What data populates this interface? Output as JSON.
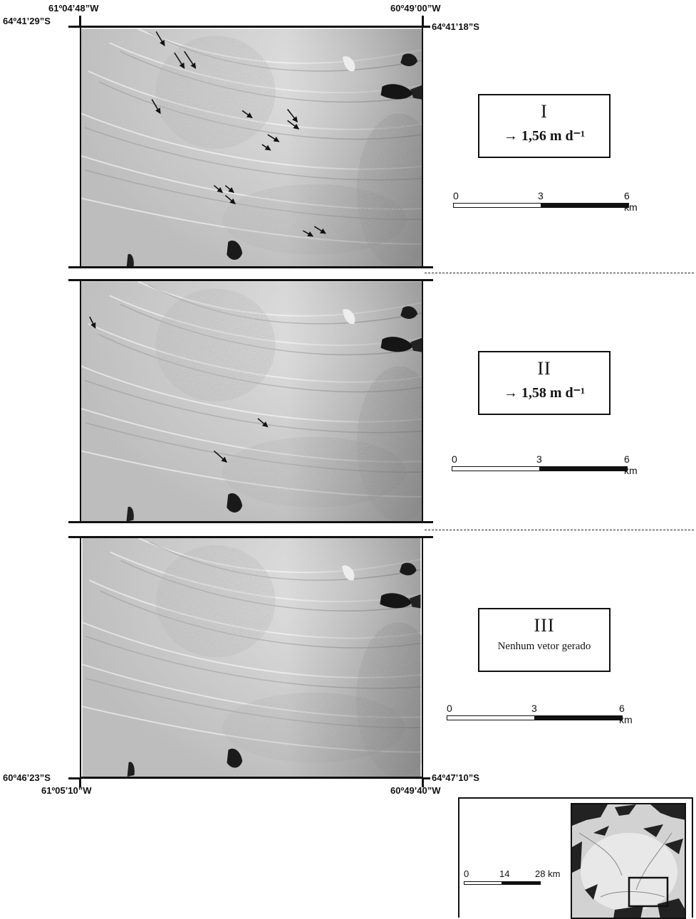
{
  "coordinates": {
    "top_left_lon": "61º04’48”W",
    "top_right_lon": "60º49’00”W",
    "top_left_lat": "64º41’29”S",
    "top_right_lat": "64º41’18”S",
    "bottom_left_lat": "60º46’23”S",
    "bottom_right_lat": "64º47’10”S",
    "bottom_left_lon": "61º05’10”W",
    "bottom_right_lon": "60º49’40”W"
  },
  "panels": [
    {
      "label": "I",
      "velocity": "→ 1,56 m d⁻¹",
      "note": ""
    },
    {
      "label": "II",
      "velocity": "→ 1,58 m d⁻¹",
      "note": ""
    },
    {
      "label": "III",
      "velocity": "",
      "note": "Nenhum vetor gerado"
    }
  ],
  "scale_bar": {
    "tick_0": "0",
    "tick_mid": "3",
    "tick_end": "6 km"
  },
  "locator": {
    "scale_tick_0": "0",
    "scale_tick_mid": "14",
    "scale_tick_end": "28 km"
  },
  "colors": {
    "ice": "#c9c9c9",
    "rock": "#1a1a1a",
    "frame": "#111111"
  }
}
